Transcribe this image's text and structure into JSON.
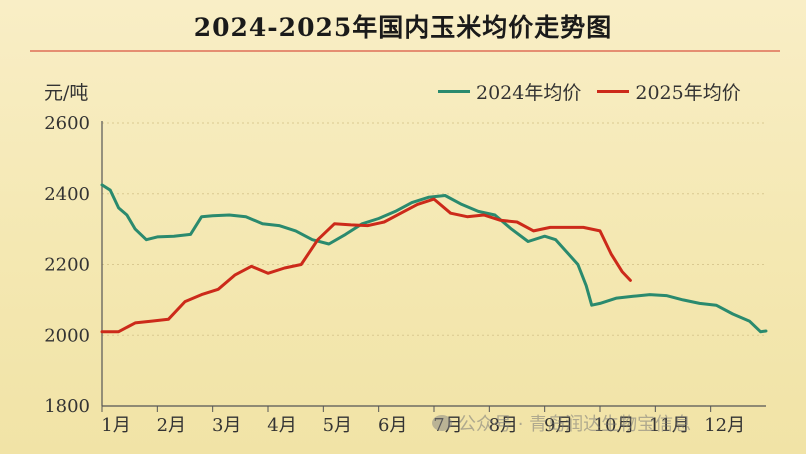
{
  "colors": {
    "series_2024": "#2a8a6e",
    "series_2025": "#cc2a1a",
    "grid": "#d9c990",
    "axis": "#555555",
    "title_rule": "#e58e72"
  },
  "watermark": {
    "text": "公众号 · 青岛润达生物宝信息",
    "icon": "wechat-icon"
  },
  "chart_data": {
    "type": "line",
    "title": "2024-2025年国内玉米均价走势图",
    "ylabel": "元/吨",
    "xlabel": "",
    "ylim": [
      1800,
      2600
    ],
    "yticks": [
      1800,
      2000,
      2200,
      2400,
      2600
    ],
    "xlim": [
      1,
      13
    ],
    "xticks": [
      1,
      2,
      3,
      4,
      5,
      6,
      7,
      8,
      9,
      10,
      11,
      12
    ],
    "categories": [
      "1月",
      "2月",
      "3月",
      "4月",
      "5月",
      "6月",
      "7月",
      "8月",
      "9月",
      "10月",
      "11月",
      "12月"
    ],
    "grid": true,
    "legend": "top-right",
    "series": [
      {
        "name": "2024年均价",
        "x": [
          1.0,
          1.15,
          1.3,
          1.45,
          1.6,
          1.8,
          2.0,
          2.3,
          2.6,
          2.8,
          3.0,
          3.3,
          3.6,
          3.9,
          4.2,
          4.5,
          4.8,
          5.1,
          5.4,
          5.7,
          6.0,
          6.3,
          6.6,
          6.9,
          7.2,
          7.5,
          7.8,
          8.1,
          8.4,
          8.7,
          9.0,
          9.2,
          9.4,
          9.6,
          9.75,
          9.85,
          10.0,
          10.3,
          10.6,
          10.9,
          11.2,
          11.5,
          11.8,
          12.1,
          12.4,
          12.7,
          12.9,
          13.0
        ],
        "values": [
          2425,
          2410,
          2360,
          2340,
          2300,
          2270,
          2278,
          2280,
          2285,
          2335,
          2338,
          2340,
          2335,
          2315,
          2310,
          2295,
          2270,
          2258,
          2285,
          2315,
          2330,
          2350,
          2375,
          2390,
          2395,
          2370,
          2350,
          2340,
          2300,
          2265,
          2280,
          2270,
          2235,
          2200,
          2140,
          2085,
          2090,
          2105,
          2110,
          2115,
          2112,
          2100,
          2090,
          2085,
          2060,
          2040,
          2010,
          2012
        ]
      },
      {
        "name": "2025年均价",
        "x": [
          1.0,
          1.3,
          1.6,
          1.9,
          2.2,
          2.5,
          2.8,
          3.1,
          3.4,
          3.7,
          4.0,
          4.3,
          4.6,
          4.9,
          5.2,
          5.5,
          5.8,
          6.1,
          6.4,
          6.7,
          7.0,
          7.3,
          7.6,
          7.9,
          8.2,
          8.5,
          8.8,
          9.1,
          9.4,
          9.7,
          10.0,
          10.2,
          10.4,
          10.55
        ],
        "values": [
          2010,
          2010,
          2035,
          2040,
          2045,
          2095,
          2115,
          2130,
          2170,
          2195,
          2175,
          2190,
          2200,
          2270,
          2315,
          2312,
          2310,
          2320,
          2345,
          2370,
          2385,
          2345,
          2335,
          2340,
          2325,
          2320,
          2295,
          2305,
          2305,
          2305,
          2295,
          2230,
          2180,
          2155
        ]
      }
    ]
  }
}
